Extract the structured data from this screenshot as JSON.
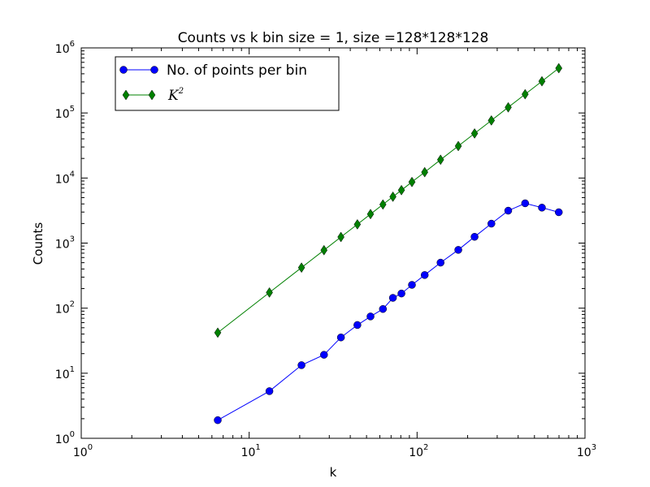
{
  "chart_data": {
    "type": "line",
    "title": "Counts vs k bin size = 1, size =128*128*128",
    "xlabel": "k",
    "ylabel": "Counts",
    "xscale": "log",
    "yscale": "log",
    "xlim": [
      1,
      1000
    ],
    "ylim": [
      1,
      1000000
    ],
    "x_ticks": [
      {
        "base": "10",
        "exp": "0",
        "value": 1
      },
      {
        "base": "10",
        "exp": "1",
        "value": 10
      },
      {
        "base": "10",
        "exp": "2",
        "value": 100
      },
      {
        "base": "10",
        "exp": "3",
        "value": 1000
      }
    ],
    "y_ticks": [
      {
        "base": "10",
        "exp": "0",
        "value": 1
      },
      {
        "base": "10",
        "exp": "1",
        "value": 10
      },
      {
        "base": "10",
        "exp": "2",
        "value": 100
      },
      {
        "base": "10",
        "exp": "3",
        "value": 1000
      },
      {
        "base": "10",
        "exp": "4",
        "value": 10000
      },
      {
        "base": "10",
        "exp": "5",
        "value": 100000
      },
      {
        "base": "10",
        "exp": "6",
        "value": 1000000
      }
    ],
    "grid": false,
    "legend_position": "top-left",
    "series": [
      {
        "name": "No. of points per bin",
        "color": "#0000ff",
        "marker": "circle",
        "x": [
          6.5,
          13.2,
          20.5,
          27.9,
          35.2,
          44.1,
          52.8,
          62.6,
          71.8,
          80.7,
          93.2,
          111,
          138,
          176,
          220,
          277,
          349,
          440,
          554,
          698
        ],
        "y": [
          1.9,
          5.3,
          13.3,
          19.2,
          35.5,
          55.1,
          74.6,
          97.1,
          144,
          168,
          228,
          323,
          501,
          787,
          1250,
          1990,
          3150,
          4090,
          3510,
          2980
        ]
      },
      {
        "name_base": "K",
        "name_exp": "2",
        "color": "#008000",
        "marker": "diamond",
        "x": [
          6.5,
          13.2,
          20.5,
          27.9,
          35.2,
          44.1,
          52.8,
          62.6,
          71.8,
          80.7,
          93.2,
          111,
          138,
          176,
          220,
          277,
          349,
          440,
          554,
          698
        ],
        "y": [
          42,
          174,
          420,
          778,
          1240,
          1940,
          2790,
          3920,
          5160,
          6510,
          8690,
          12300,
          19100,
          31000,
          48400,
          76700,
          122000,
          194000,
          307000,
          487000
        ]
      }
    ]
  }
}
